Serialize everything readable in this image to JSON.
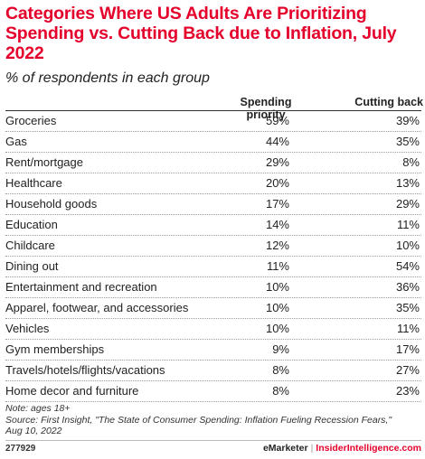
{
  "chart_data": {
    "type": "table",
    "title": "Categories Where US Adults Are Prioritizing Spending vs. Cutting Back due to Inflation, July 2022",
    "subtitle": "% of respondents in each group",
    "columns": [
      "Spending priority",
      "Cutting back"
    ],
    "categories": [
      "Groceries",
      "Gas",
      "Rent/mortgage",
      "Healthcare",
      "Household goods",
      "Education",
      "Childcare",
      "Dining out",
      "Entertainment and recreation",
      "Apparel, footwear, and accessories",
      "Vehicles",
      "Gym memberships",
      "Travels/hotels/flights/vacations",
      "Home decor and furniture"
    ],
    "series": [
      {
        "name": "Spending priority",
        "values": [
          59,
          44,
          29,
          20,
          17,
          14,
          12,
          11,
          10,
          10,
          10,
          9,
          8,
          8
        ]
      },
      {
        "name": "Cutting back",
        "values": [
          39,
          35,
          8,
          13,
          29,
          11,
          10,
          54,
          36,
          35,
          11,
          17,
          27,
          23
        ]
      }
    ],
    "unit": "%"
  },
  "notes": {
    "note": "Note: ages 18+",
    "source_line1": "Source: First Insight, \"The State of Consumer Spending: Inflation Fueling Recession Fears,\"",
    "source_line2": "Aug 10, 2022"
  },
  "footer": {
    "chart_id": "277929",
    "brand_emarketer": "eMarketer",
    "brand_separator": "|",
    "brand_insider": "InsiderIntelligence.com"
  },
  "colors": {
    "title": "#e4002b",
    "brand_accent": "#e4002b",
    "row_divider": "#9a9a9a"
  }
}
